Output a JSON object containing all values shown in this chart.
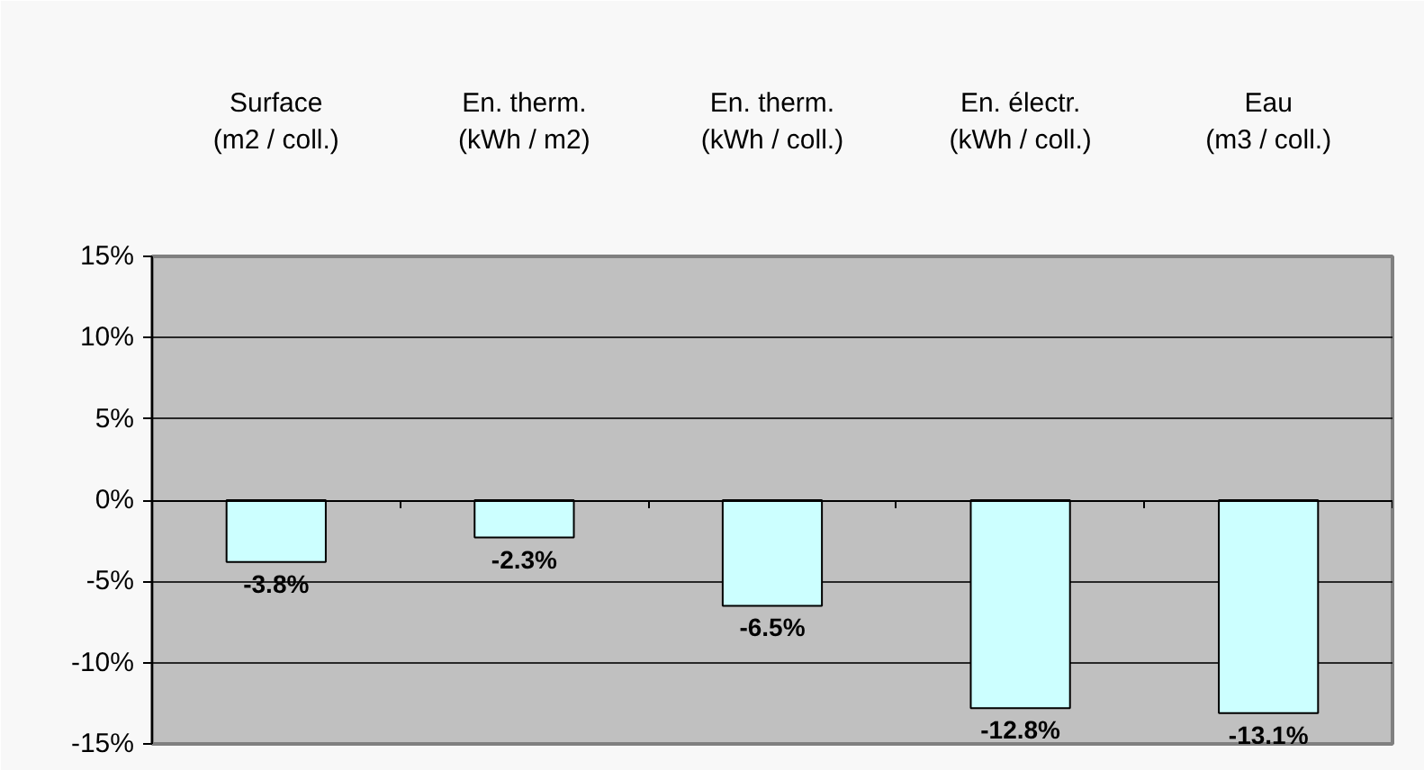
{
  "chart_data": {
    "type": "bar",
    "categories": [
      "Surface\n(m2 / coll.)",
      "En. therm.\n(kWh / m2)",
      "En. therm.\n(kWh / coll.)",
      "En. électr.\n(kWh / coll.)",
      "Eau\n(m3 / coll.)"
    ],
    "values": [
      -3.8,
      -2.3,
      -6.5,
      -12.8,
      -13.1
    ],
    "value_labels": [
      "-3.8%",
      "-2.3%",
      "-6.5%",
      "-12.8%",
      "-13.1%"
    ],
    "color": "#ccffff",
    "ylim": [
      -15,
      15
    ],
    "yticks": [
      {
        "value": -15,
        "label": "-15%"
      },
      {
        "value": -10,
        "label": "-10%"
      },
      {
        "value": -5,
        "label": "-5%"
      },
      {
        "value": 0,
        "label": "0%"
      },
      {
        "value": 5,
        "label": "5%"
      },
      {
        "value": 10,
        "label": "10%"
      },
      {
        "value": 15,
        "label": "15%"
      }
    ],
    "grid": "y"
  }
}
